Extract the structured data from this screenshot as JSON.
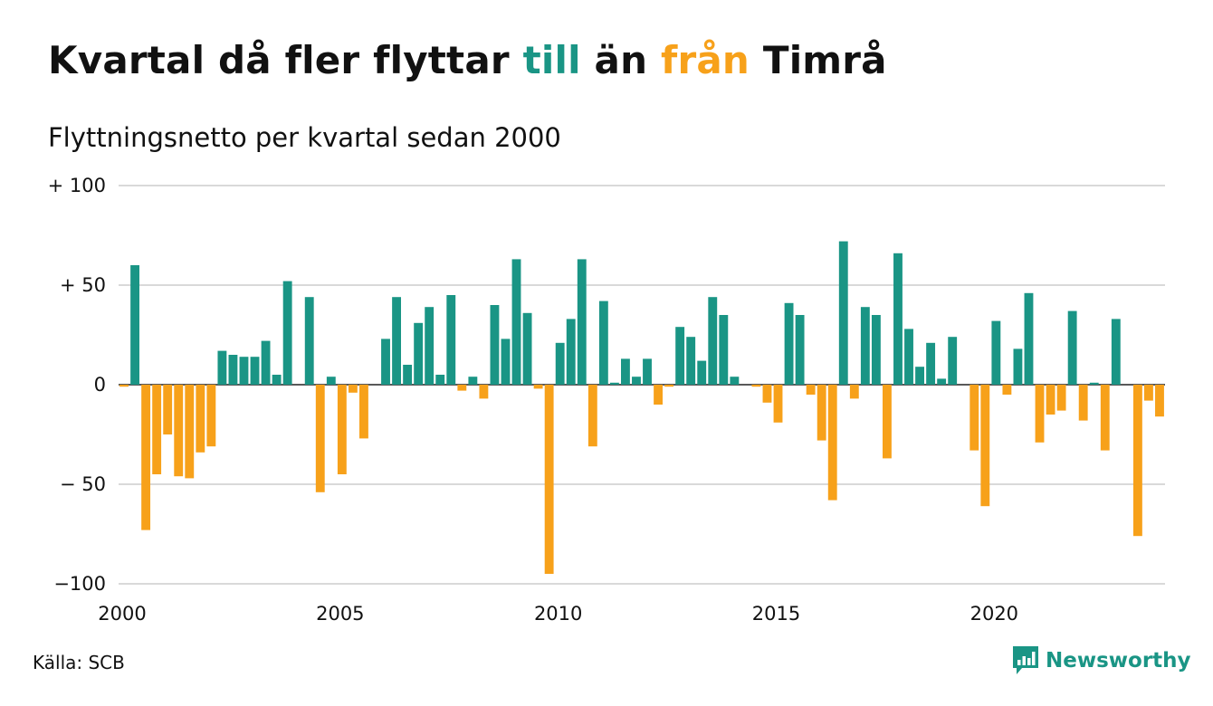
{
  "header": {
    "title_parts": [
      "Kvartal då fler flyttar ",
      "till",
      " än ",
      "från",
      " Timrå"
    ],
    "subtitle": "Flyttningsnetto per kvartal sedan 2000"
  },
  "colors": {
    "positive": "#1a9585",
    "negative": "#f7a11a",
    "grid": "#d9d9d9",
    "text": "#111111"
  },
  "footer": {
    "source": "Källa: SCB",
    "brand": "Newsworthy",
    "brand_icon": "newsworthy-logo-icon"
  },
  "chart_data": {
    "type": "bar",
    "title": "Kvartal då fler flyttar till än från Timrå",
    "subtitle": "Flyttningsnetto per kvartal sedan 2000",
    "xlabel": "",
    "ylabel": "",
    "ylim": [
      -100,
      100
    ],
    "yticks": [
      100,
      50,
      0,
      -50,
      -100
    ],
    "ytick_labels": [
      "+ 100",
      "+  50",
      "0",
      "− 50",
      "−100"
    ],
    "xticks": [
      2000,
      2005,
      2010,
      2015,
      2020
    ],
    "xtick_labels": [
      "2000",
      "2005",
      "2010",
      "2015",
      "2020"
    ],
    "grid": true,
    "categories": [
      "2000 Q1",
      "2000 Q2",
      "2000 Q3",
      "2000 Q4",
      "2001 Q1",
      "2001 Q2",
      "2001 Q3",
      "2001 Q4",
      "2002 Q1",
      "2002 Q2",
      "2002 Q3",
      "2002 Q4",
      "2003 Q1",
      "2003 Q2",
      "2003 Q3",
      "2003 Q4",
      "2004 Q1",
      "2004 Q2",
      "2004 Q3",
      "2004 Q4",
      "2005 Q1",
      "2005 Q2",
      "2005 Q3",
      "2005 Q4",
      "2006 Q1",
      "2006 Q2",
      "2006 Q3",
      "2006 Q4",
      "2007 Q1",
      "2007 Q2",
      "2007 Q3",
      "2007 Q4",
      "2008 Q1",
      "2008 Q2",
      "2008 Q3",
      "2008 Q4",
      "2009 Q1",
      "2009 Q2",
      "2009 Q3",
      "2009 Q4",
      "2010 Q1",
      "2010 Q2",
      "2010 Q3",
      "2010 Q4",
      "2011 Q1",
      "2011 Q2",
      "2011 Q3",
      "2011 Q4",
      "2012 Q1",
      "2012 Q2",
      "2012 Q3",
      "2012 Q4",
      "2013 Q1",
      "2013 Q2",
      "2013 Q3",
      "2013 Q4",
      "2014 Q1",
      "2014 Q2",
      "2014 Q3",
      "2014 Q4",
      "2015 Q1",
      "2015 Q2",
      "2015 Q3",
      "2015 Q4",
      "2016 Q1",
      "2016 Q2",
      "2016 Q3",
      "2016 Q4",
      "2017 Q1",
      "2017 Q2",
      "2017 Q3",
      "2017 Q4",
      "2018 Q1",
      "2018 Q2",
      "2018 Q3",
      "2018 Q4",
      "2019 Q1",
      "2019 Q2",
      "2019 Q3",
      "2019 Q4",
      "2020 Q1",
      "2020 Q2",
      "2020 Q3",
      "2020 Q4",
      "2021 Q1",
      "2021 Q2",
      "2021 Q3",
      "2021 Q4",
      "2022 Q1",
      "2022 Q2",
      "2022 Q3",
      "2022 Q4",
      "2023 Q1",
      "2023 Q2",
      "2023 Q3",
      "2023 Q4"
    ],
    "values": [
      -1,
      60,
      -73,
      -45,
      -25,
      -46,
      -47,
      -34,
      -31,
      17,
      15,
      14,
      14,
      22,
      5,
      52,
      0,
      44,
      -54,
      4,
      -45,
      -4,
      -27,
      0,
      23,
      44,
      10,
      31,
      39,
      5,
      45,
      -3,
      4,
      -7,
      40,
      23,
      63,
      36,
      -2,
      -95,
      21,
      33,
      63,
      -31,
      42,
      1,
      13,
      4,
      13,
      -10,
      -1,
      29,
      24,
      12,
      44,
      35,
      4,
      0,
      -1,
      -9,
      -19,
      41,
      35,
      -5,
      -28,
      -58,
      72,
      -7,
      39,
      35,
      -37,
      66,
      28,
      9,
      21,
      3,
      24,
      0,
      -33,
      -61,
      32,
      -5,
      18,
      46,
      -29,
      -15,
      -13,
      37,
      -18,
      1,
      -33,
      33,
      0,
      -76,
      -8,
      -16
    ]
  }
}
